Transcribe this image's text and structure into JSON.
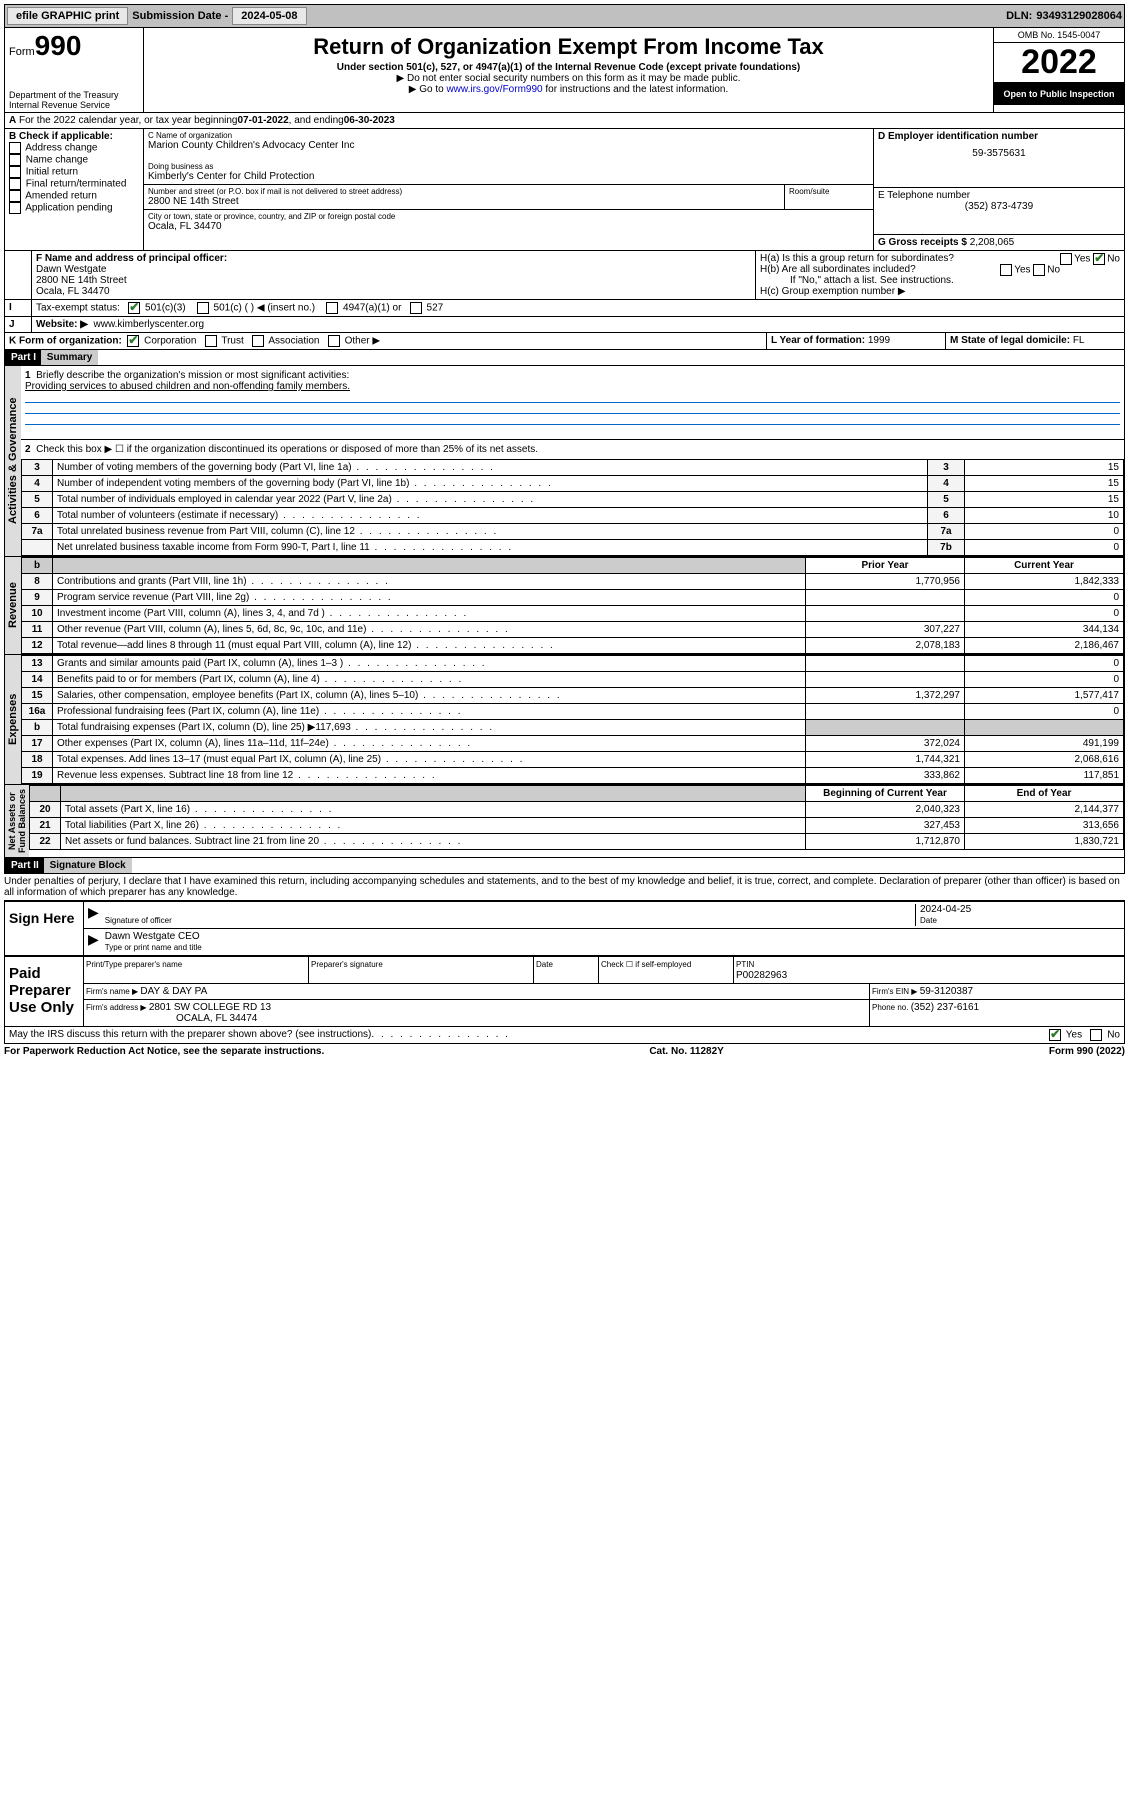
{
  "topbar": {
    "efile": "efile GRAPHIC print",
    "submission_label": "Submission Date - ",
    "submission_date": "2024-05-08",
    "dln_label": "DLN: ",
    "dln": "93493129028064"
  },
  "header": {
    "form_label": "Form",
    "form_no": "990",
    "dept": "Department of the Treasury\nInternal Revenue Service",
    "title": "Return of Organization Exempt From Income Tax",
    "sub": "Under section 501(c), 527, or 4947(a)(1) of the Internal Revenue Code (except private foundations)",
    "note1": "▶ Do not enter social security numbers on this form as it may be made public.",
    "note2_pre": "▶ Go to ",
    "note2_link": "www.irs.gov/Form990",
    "note2_post": " for instructions and the latest information.",
    "omb": "OMB No. 1545-0047",
    "year": "2022",
    "inspection": "Open to Public Inspection"
  },
  "periodA": {
    "text_pre": "For the 2022 calendar year, or tax year beginning ",
    "begin": "07-01-2022",
    "mid": " , and ending ",
    "end": "06-30-2023"
  },
  "boxB": {
    "label": "B Check if applicable:",
    "items": [
      "Address change",
      "Name change",
      "Initial return",
      "Final return/terminated",
      "Amended return",
      "Application pending"
    ]
  },
  "boxC": {
    "name_label": "C Name of organization",
    "name": "Marion County Children's Advocacy Center Inc",
    "dba_label": "Doing business as",
    "dba": "Kimberly's Center for Child Protection",
    "street_label": "Number and street (or P.O. box if mail is not delivered to street address)",
    "room_label": "Room/suite",
    "street": "2800 NE 14th Street",
    "city_label": "City or town, state or province, country, and ZIP or foreign postal code",
    "city": "Ocala, FL  34470"
  },
  "boxD": {
    "label": "D Employer identification number",
    "value": "59-3575631"
  },
  "boxE": {
    "label": "E Telephone number",
    "value": "(352) 873-4739"
  },
  "boxG": {
    "label": "G Gross receipts $ ",
    "value": "2,208,065"
  },
  "boxF": {
    "label": "F Name and address of principal officer:",
    "name": "Dawn Westgate",
    "street": "2800 NE 14th Street",
    "city": "Ocala, FL  34470"
  },
  "boxH": {
    "a": "H(a)  Is this a group return for subordinates?",
    "b": "H(b)  Are all subordinates included?",
    "b_note": "If \"No,\" attach a list. See instructions.",
    "c": "H(c)  Group exemption number ▶",
    "yes": "Yes",
    "no": "No"
  },
  "boxI": {
    "label": "Tax-exempt status:",
    "opts": [
      "501(c)(3)",
      "501(c) (  ) ◀ (insert no.)",
      "4947(a)(1) or",
      "527"
    ]
  },
  "boxJ": {
    "label": "Website: ▶",
    "value": "www.kimberlyscenter.org"
  },
  "boxK": {
    "label": "K Form of organization:",
    "opts": [
      "Corporation",
      "Trust",
      "Association",
      "Other ▶"
    ]
  },
  "boxL": {
    "label": "L Year of formation: ",
    "value": "1999"
  },
  "boxM": {
    "label": "M State of legal domicile: ",
    "value": "FL"
  },
  "partI": {
    "num": "Part I",
    "title": "Summary",
    "line1_label": "Briefly describe the organization's mission or most significant activities:",
    "line1_value": "Providing services to abused children and non-offending family members.",
    "line2": "Check this box ▶ ☐  if the organization discontinued its operations or disposed of more than 25% of its net assets.",
    "lines_gov": [
      {
        "n": "3",
        "t": "Number of voting members of the governing body (Part VI, line 1a)",
        "box": "3",
        "v": "15"
      },
      {
        "n": "4",
        "t": "Number of independent voting members of the governing body (Part VI, line 1b)",
        "box": "4",
        "v": "15"
      },
      {
        "n": "5",
        "t": "Total number of individuals employed in calendar year 2022 (Part V, line 2a)",
        "box": "5",
        "v": "15"
      },
      {
        "n": "6",
        "t": "Total number of volunteers (estimate if necessary)",
        "box": "6",
        "v": "10"
      },
      {
        "n": "7a",
        "t": "Total unrelated business revenue from Part VIII, column (C), line 12",
        "box": "7a",
        "v": "0"
      },
      {
        "n": "",
        "t": "Net unrelated business taxable income from Form 990-T, Part I, line 11",
        "box": "7b",
        "v": "0"
      }
    ],
    "col_headers": {
      "prior": "Prior Year",
      "current": "Current Year",
      "boy": "Beginning of Current Year",
      "eoy": "End of Year"
    },
    "revenue": [
      {
        "n": "8",
        "t": "Contributions and grants (Part VIII, line 1h)",
        "p": "1,770,956",
        "c": "1,842,333"
      },
      {
        "n": "9",
        "t": "Program service revenue (Part VIII, line 2g)",
        "p": "",
        "c": "0"
      },
      {
        "n": "10",
        "t": "Investment income (Part VIII, column (A), lines 3, 4, and 7d )",
        "p": "",
        "c": "0"
      },
      {
        "n": "11",
        "t": "Other revenue (Part VIII, column (A), lines 5, 6d, 8c, 9c, 10c, and 11e)",
        "p": "307,227",
        "c": "344,134"
      },
      {
        "n": "12",
        "t": "Total revenue—add lines 8 through 11 (must equal Part VIII, column (A), line 12)",
        "p": "2,078,183",
        "c": "2,186,467"
      }
    ],
    "expenses": [
      {
        "n": "13",
        "t": "Grants and similar amounts paid (Part IX, column (A), lines 1–3 )",
        "p": "",
        "c": "0"
      },
      {
        "n": "14",
        "t": "Benefits paid to or for members (Part IX, column (A), line 4)",
        "p": "",
        "c": "0"
      },
      {
        "n": "15",
        "t": "Salaries, other compensation, employee benefits (Part IX, column (A), lines 5–10)",
        "p": "1,372,297",
        "c": "1,577,417"
      },
      {
        "n": "16a",
        "t": "Professional fundraising fees (Part IX, column (A), line 11e)",
        "p": "",
        "c": "0"
      },
      {
        "n": "b",
        "t": "Total fundraising expenses (Part IX, column (D), line 25) ▶117,693",
        "p": "shade",
        "c": "shade"
      },
      {
        "n": "17",
        "t": "Other expenses (Part IX, column (A), lines 11a–11d, 11f–24e)",
        "p": "372,024",
        "c": "491,199"
      },
      {
        "n": "18",
        "t": "Total expenses. Add lines 13–17 (must equal Part IX, column (A), line 25)",
        "p": "1,744,321",
        "c": "2,068,616"
      },
      {
        "n": "19",
        "t": "Revenue less expenses. Subtract line 18 from line 12",
        "p": "333,862",
        "c": "117,851"
      }
    ],
    "netassets": [
      {
        "n": "20",
        "t": "Total assets (Part X, line 16)",
        "p": "2,040,323",
        "c": "2,144,377"
      },
      {
        "n": "21",
        "t": "Total liabilities (Part X, line 26)",
        "p": "327,453",
        "c": "313,656"
      },
      {
        "n": "22",
        "t": "Net assets or fund balances. Subtract line 21 from line 20",
        "p": "1,712,870",
        "c": "1,830,721"
      }
    ],
    "vlabels": {
      "gov": "Activities & Governance",
      "rev": "Revenue",
      "exp": "Expenses",
      "na": "Net Assets or\nFund Balances"
    }
  },
  "partII": {
    "num": "Part II",
    "title": "Signature Block",
    "decl": "Under penalties of perjury, I declare that I have examined this return, including accompanying schedules and statements, and to the best of my knowledge and belief, it is true, correct, and complete. Declaration of preparer (other than officer) is based on all information of which preparer has any knowledge.",
    "sign_here": "Sign Here",
    "sig_officer": "Signature of officer",
    "date": "Date",
    "sig_date": "2024-04-25",
    "officer_name": "Dawn Westgate CEO",
    "type_name": "Type or print name and title",
    "paid": "Paid Preparer Use Only",
    "prep_name": "Print/Type preparer's name",
    "prep_sig": "Preparer's signature",
    "check_self": "Check ☐ if self-employed",
    "ptin_label": "PTIN",
    "ptin": "P00282963",
    "firm_name_label": "Firm's name    ▶ ",
    "firm_name": "DAY & DAY PA",
    "firm_ein_label": "Firm's EIN ▶ ",
    "firm_ein": "59-3120387",
    "firm_addr_label": "Firm's address ▶ ",
    "firm_addr1": "2801 SW COLLEGE RD 13",
    "firm_addr2": "OCALA, FL  34474",
    "phone_label": "Phone no. ",
    "phone": "(352) 237-6161",
    "may_irs": "May the IRS discuss this return with the preparer shown above? (see instructions)",
    "yes": "Yes",
    "no": "No"
  },
  "footer": {
    "left": "For Paperwork Reduction Act Notice, see the separate instructions.",
    "mid": "Cat. No. 11282Y",
    "right": "Form 990 (2022)"
  }
}
